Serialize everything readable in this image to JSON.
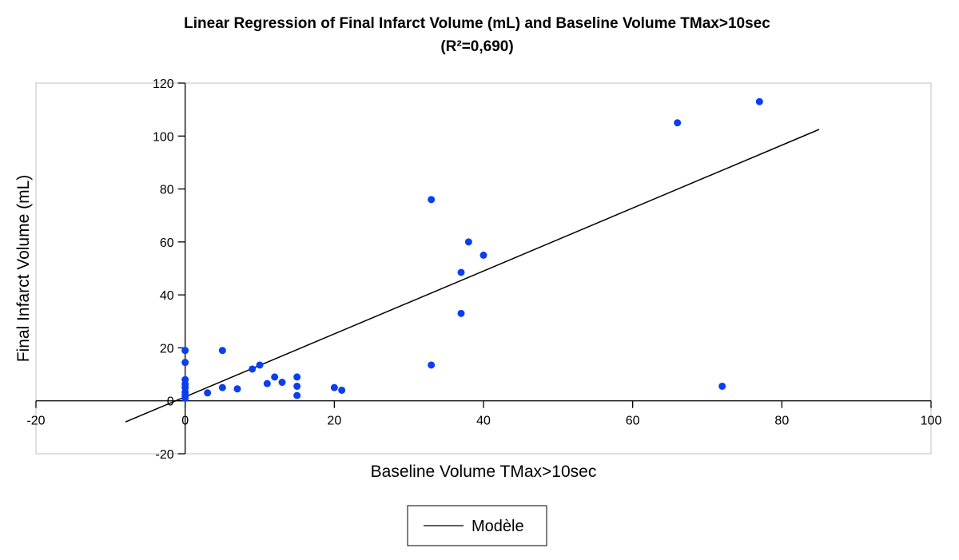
{
  "chart_data": {
    "type": "scatter",
    "title": "Linear Regression of Final Infarct Volume (mL) and Baseline Volume TMax>10sec",
    "subtitle": "(R²=0,690)",
    "xlabel": "Baseline Volume TMax>10sec",
    "ylabel": "Final Infarct Volume (mL)",
    "xlim": [
      -20,
      100
    ],
    "ylim": [
      -20,
      120
    ],
    "xticks": [
      -20,
      0,
      20,
      40,
      60,
      80,
      100
    ],
    "yticks": [
      -20,
      0,
      20,
      40,
      60,
      80,
      100,
      120
    ],
    "grid": false,
    "legend_placement": "bottom",
    "point_color": "#0a3ff0",
    "points": [
      [
        0,
        19
      ],
      [
        0,
        14.5
      ],
      [
        0,
        8
      ],
      [
        0,
        6.3
      ],
      [
        0,
        5
      ],
      [
        0,
        3.3
      ],
      [
        0,
        2
      ],
      [
        0,
        1
      ],
      [
        3,
        3
      ],
      [
        5,
        19
      ],
      [
        5,
        5
      ],
      [
        7,
        4.5
      ],
      [
        9,
        12
      ],
      [
        10,
        13.5
      ],
      [
        11,
        6.5
      ],
      [
        12,
        9
      ],
      [
        13,
        7
      ],
      [
        15,
        9
      ],
      [
        15,
        5.5
      ],
      [
        15,
        2
      ],
      [
        20,
        5
      ],
      [
        21,
        4
      ],
      [
        33,
        76
      ],
      [
        33,
        13.5
      ],
      [
        37,
        48.5
      ],
      [
        37,
        33
      ],
      [
        38,
        60
      ],
      [
        40,
        55
      ],
      [
        66,
        105
      ],
      [
        72,
        5.5
      ],
      [
        77,
        113
      ]
    ],
    "regression": {
      "name": "Modèle",
      "x": [
        -8,
        85
      ],
      "y": [
        -8,
        102.5
      ],
      "color": "#000000"
    }
  }
}
